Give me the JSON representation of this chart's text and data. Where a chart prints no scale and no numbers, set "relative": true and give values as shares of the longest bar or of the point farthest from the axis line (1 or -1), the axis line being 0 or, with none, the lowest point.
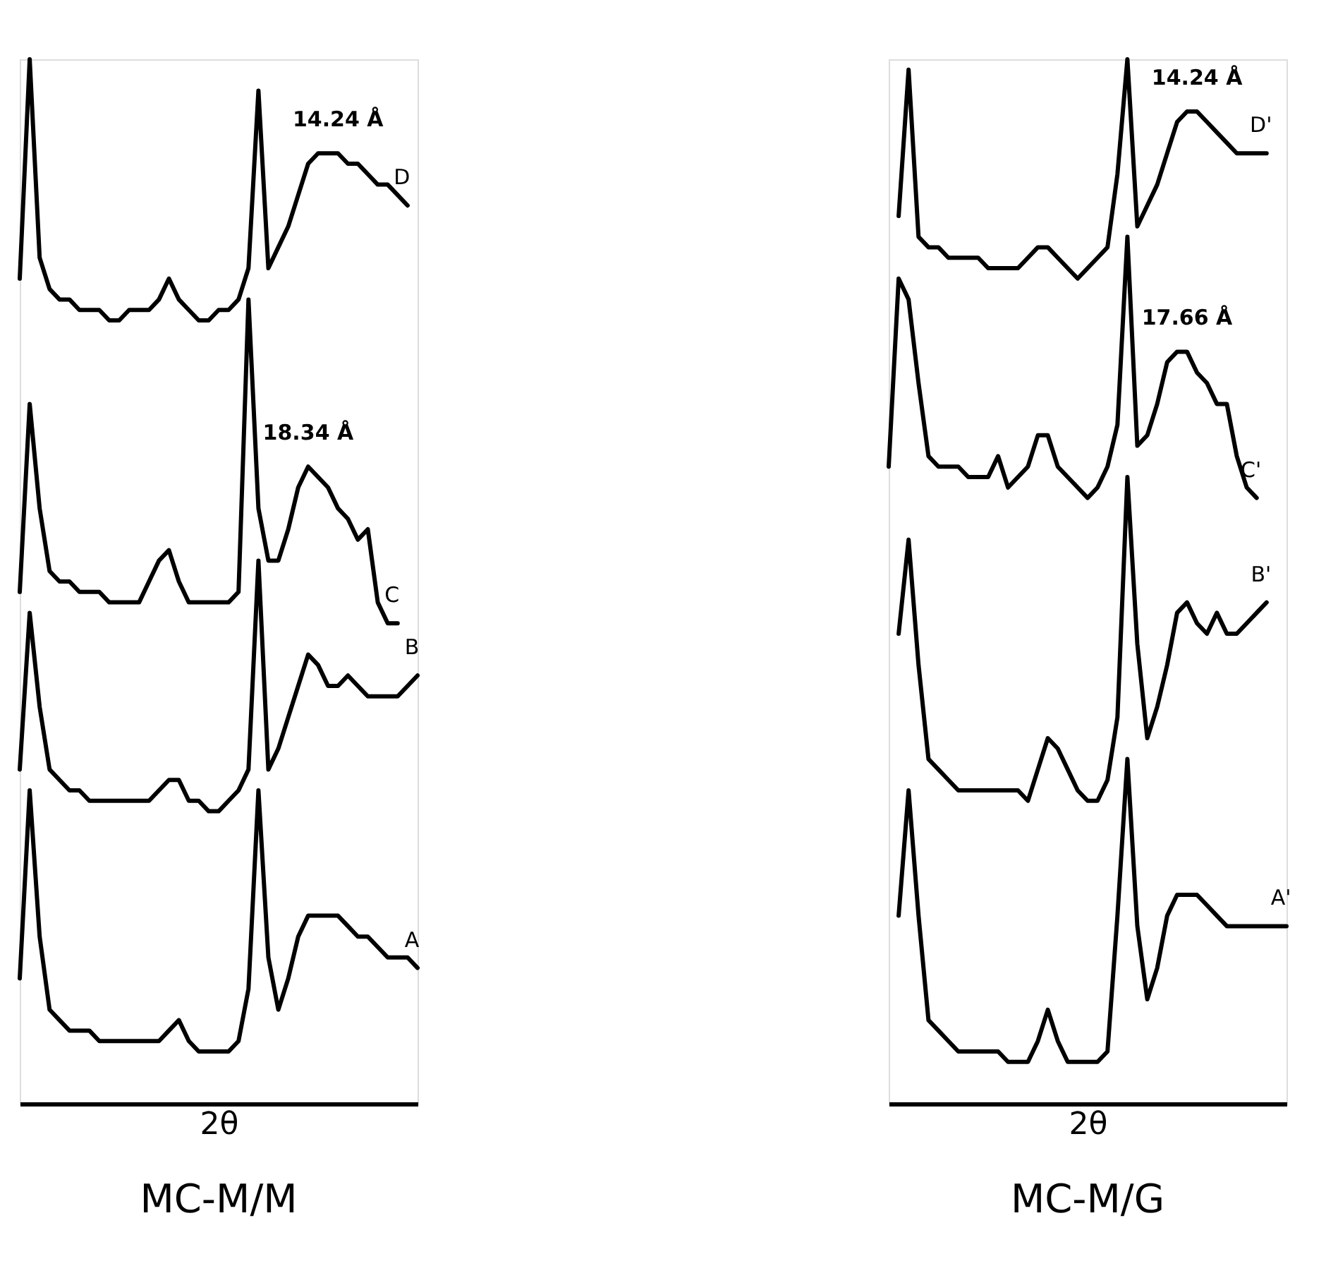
{
  "chart_data": [
    {
      "type": "line",
      "relative": true,
      "title": "MC-M/M",
      "xlabel": "2θ",
      "annotations": [
        "14.24 Å",
        "18.34 Å"
      ],
      "categories": [
        null,
        null,
        null,
        null,
        null,
        null,
        null,
        null,
        null,
        null,
        null,
        null,
        null,
        null,
        null,
        null,
        null,
        null,
        null,
        null,
        null,
        null,
        null,
        null,
        null,
        null,
        null,
        null,
        null,
        null,
        null,
        null,
        null,
        null,
        null,
        null,
        null,
        null,
        null,
        null,
        null
      ],
      "series": [
        {
          "name": "D",
          "color": "#000000",
          "line_style": "solid",
          "values": [
            0.79,
            1.0,
            0.81,
            0.78,
            0.77,
            0.77,
            0.76,
            0.76,
            0.76,
            0.75,
            0.75,
            0.76,
            0.76,
            0.76,
            0.77,
            0.79,
            0.77,
            0.76,
            0.75,
            0.75,
            0.76,
            0.76,
            0.77,
            0.8,
            0.97,
            0.8,
            0.82,
            0.84,
            0.87,
            0.9,
            0.91,
            0.91,
            0.91,
            0.9,
            0.9,
            0.89,
            0.88,
            0.88,
            0.87,
            0.86,
            null
          ]
        },
        {
          "name": "C",
          "color": "#000000",
          "line_style": "solid",
          "values": [
            0.49,
            0.67,
            0.57,
            0.51,
            0.5,
            0.5,
            0.49,
            0.49,
            0.49,
            0.48,
            0.48,
            0.48,
            0.48,
            0.5,
            0.52,
            0.53,
            0.5,
            0.48,
            0.48,
            0.48,
            0.48,
            0.48,
            0.49,
            0.77,
            0.57,
            0.52,
            0.52,
            0.55,
            0.59,
            0.61,
            0.6,
            0.59,
            0.57,
            0.56,
            0.54,
            0.55,
            0.48,
            0.46,
            0.46,
            null,
            null
          ]
        },
        {
          "name": "B",
          "color": "#000000",
          "line_style": "solid",
          "values": [
            0.32,
            0.47,
            0.38,
            0.32,
            0.31,
            0.3,
            0.3,
            0.29,
            0.29,
            0.29,
            0.29,
            0.29,
            0.29,
            0.29,
            0.3,
            0.31,
            0.31,
            0.29,
            0.29,
            0.28,
            0.28,
            0.29,
            0.3,
            0.32,
            0.52,
            0.32,
            0.34,
            0.37,
            0.4,
            0.43,
            0.42,
            0.4,
            0.4,
            0.41,
            0.4,
            0.39,
            0.39,
            0.39,
            0.39,
            0.4,
            0.41
          ]
        },
        {
          "name": "A",
          "color": "#000000",
          "line_style": "solid",
          "values": [
            0.12,
            0.3,
            0.16,
            0.09,
            0.08,
            0.07,
            0.07,
            0.07,
            0.06,
            0.06,
            0.06,
            0.06,
            0.06,
            0.06,
            0.06,
            0.07,
            0.08,
            0.06,
            0.05,
            0.05,
            0.05,
            0.05,
            0.06,
            0.11,
            0.3,
            0.14,
            0.09,
            0.12,
            0.16,
            0.18,
            0.18,
            0.18,
            0.18,
            0.17,
            0.16,
            0.16,
            0.15,
            0.14,
            0.14,
            0.14,
            0.13
          ]
        }
      ]
    },
    {
      "type": "line",
      "relative": true,
      "title": "MC-M/G",
      "xlabel": "2θ",
      "annotations": [
        "14.24 Å",
        "17.66 Å"
      ],
      "categories": [
        null,
        null,
        null,
        null,
        null,
        null,
        null,
        null,
        null,
        null,
        null,
        null,
        null,
        null,
        null,
        null,
        null,
        null,
        null,
        null,
        null,
        null,
        null,
        null,
        null,
        null,
        null,
        null,
        null,
        null,
        null,
        null,
        null,
        null,
        null,
        null,
        null,
        null,
        null,
        null,
        null
      ],
      "series": [
        {
          "name": "D'",
          "color": "#000000",
          "line_style": "solid",
          "values": [
            null,
            0.85,
            0.99,
            0.83,
            0.82,
            0.82,
            0.81,
            0.81,
            0.81,
            0.81,
            0.8,
            0.8,
            0.8,
            0.8,
            0.81,
            0.82,
            0.82,
            0.81,
            0.8,
            0.79,
            0.8,
            0.81,
            0.82,
            0.89,
            1.0,
            0.84,
            0.86,
            0.88,
            0.91,
            0.94,
            0.95,
            0.95,
            0.94,
            0.93,
            0.92,
            0.91,
            0.91,
            0.91,
            0.91,
            null,
            null
          ]
        },
        {
          "name": "C'",
          "color": "#000000",
          "line_style": "solid",
          "values": [
            0.61,
            0.79,
            0.77,
            0.69,
            0.62,
            0.61,
            0.61,
            0.61,
            0.6,
            0.6,
            0.6,
            0.62,
            0.59,
            0.6,
            0.61,
            0.64,
            0.64,
            0.61,
            0.6,
            0.59,
            0.58,
            0.59,
            0.61,
            0.65,
            0.83,
            0.63,
            0.64,
            0.67,
            0.71,
            0.72,
            0.72,
            0.7,
            0.69,
            0.67,
            0.67,
            0.62,
            0.59,
            0.58,
            null,
            null,
            null
          ]
        },
        {
          "name": "B'",
          "color": "#000000",
          "line_style": "solid",
          "values": [
            null,
            0.45,
            0.54,
            0.42,
            0.33,
            0.32,
            0.31,
            0.3,
            0.3,
            0.3,
            0.3,
            0.3,
            0.3,
            0.3,
            0.29,
            0.32,
            0.35,
            0.34,
            0.32,
            0.3,
            0.29,
            0.29,
            0.31,
            0.37,
            0.6,
            0.44,
            0.35,
            0.38,
            0.42,
            0.47,
            0.48,
            0.46,
            0.45,
            0.47,
            0.45,
            0.45,
            0.46,
            0.47,
            0.48,
            null,
            null
          ]
        },
        {
          "name": "A'",
          "color": "#000000",
          "line_style": "solid",
          "values": [
            null,
            0.18,
            0.3,
            0.18,
            0.08,
            0.07,
            0.06,
            0.05,
            0.05,
            0.05,
            0.05,
            0.05,
            0.04,
            0.04,
            0.04,
            0.06,
            0.09,
            0.06,
            0.04,
            0.04,
            0.04,
            0.04,
            0.05,
            0.18,
            0.33,
            0.17,
            0.1,
            0.13,
            0.18,
            0.2,
            0.2,
            0.2,
            0.19,
            0.18,
            0.17,
            0.17,
            0.17,
            0.17,
            0.17,
            0.17,
            0.17
          ]
        }
      ]
    }
  ]
}
